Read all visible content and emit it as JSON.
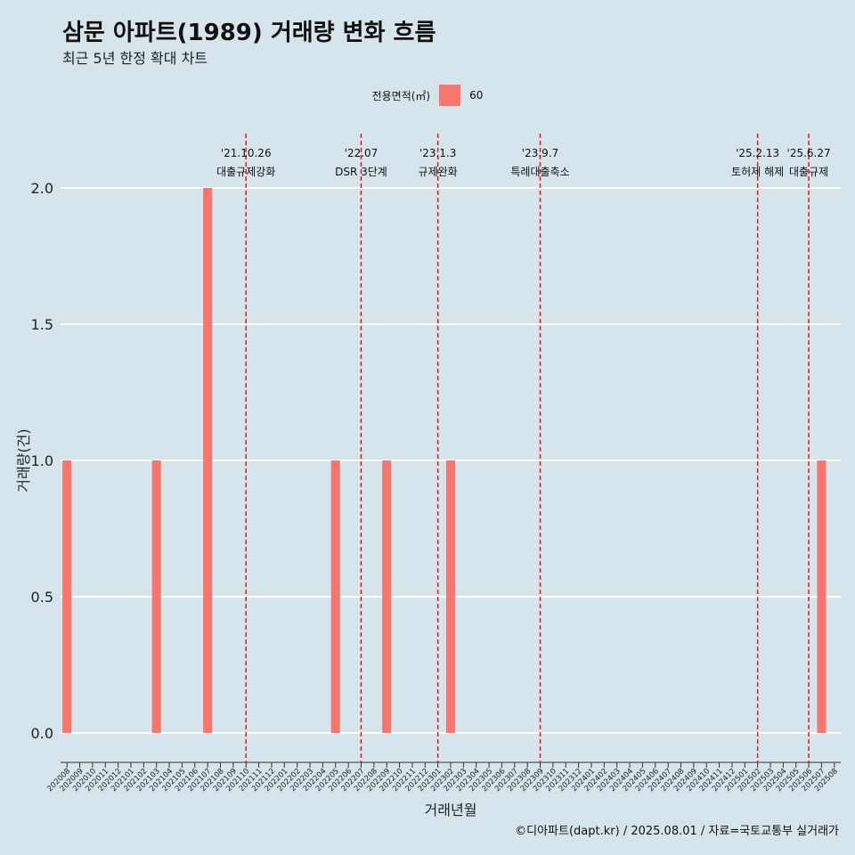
{
  "title": "삼문 아파트(1989) 거래량 변화 흐름",
  "subtitle": "최근 5년 한정 확대 차트",
  "caption": "©디아파트(dapt.kr) / 2025.08.01 / 자료=국토교통부 실거래가",
  "colors": {
    "bar": "#f8766d",
    "event_line": "#e31a1c",
    "background": "#d6e4ec",
    "grid": "#ffffff"
  },
  "chart_data": {
    "type": "bar",
    "xlabel": "거래년월",
    "ylabel": "거래량(건)",
    "ylim": [
      0,
      2
    ],
    "yticks": [
      "0.0",
      "0.5",
      "1.0",
      "1.5",
      "2.0"
    ],
    "legend": {
      "title": "전용면적(㎡)",
      "placement": "top",
      "entries": [
        "60"
      ]
    },
    "grid": true,
    "categories": [
      "202008",
      "202009",
      "202010",
      "202011",
      "202012",
      "202101",
      "202102",
      "202103",
      "202104",
      "202105",
      "202106",
      "202107",
      "202108",
      "202109",
      "202110",
      "202111",
      "202112",
      "202201",
      "202202",
      "202203",
      "202204",
      "202205",
      "202206",
      "202207",
      "202208",
      "202209",
      "202210",
      "202211",
      "202212",
      "202301",
      "202302",
      "202303",
      "202304",
      "202305",
      "202306",
      "202307",
      "202308",
      "202309",
      "202310",
      "202311",
      "202312",
      "202401",
      "202402",
      "202403",
      "202404",
      "202405",
      "202406",
      "202407",
      "202408",
      "202409",
      "202410",
      "202411",
      "202412",
      "202501",
      "202502",
      "202503",
      "202504",
      "202505",
      "202506",
      "202507",
      "202508"
    ],
    "series": [
      {
        "name": "60",
        "values": [
          1,
          0,
          0,
          0,
          0,
          0,
          0,
          1,
          0,
          0,
          0,
          2,
          0,
          0,
          0,
          0,
          0,
          0,
          0,
          0,
          0,
          1,
          0,
          0,
          0,
          1,
          0,
          0,
          0,
          0,
          1,
          0,
          0,
          0,
          0,
          0,
          0,
          0,
          0,
          0,
          0,
          0,
          0,
          0,
          0,
          0,
          0,
          0,
          0,
          0,
          0,
          0,
          0,
          0,
          0,
          0,
          0,
          0,
          0,
          1,
          0
        ]
      }
    ],
    "events": [
      {
        "date": "'21.10.26",
        "label": "대출규제강화",
        "x": "202110"
      },
      {
        "date": "'22.07",
        "label": "DSR 3단계",
        "x": "202207"
      },
      {
        "date": "'23.1.3",
        "label": "규제완화",
        "x": "202301"
      },
      {
        "date": "'23.9.7",
        "label": "특례대출축소",
        "x": "202309"
      },
      {
        "date": "'25.2.13",
        "label": "토허제 해제",
        "x": "202502"
      },
      {
        "date": "'25.6.27",
        "label": "대출규제",
        "x": "202506"
      }
    ]
  }
}
